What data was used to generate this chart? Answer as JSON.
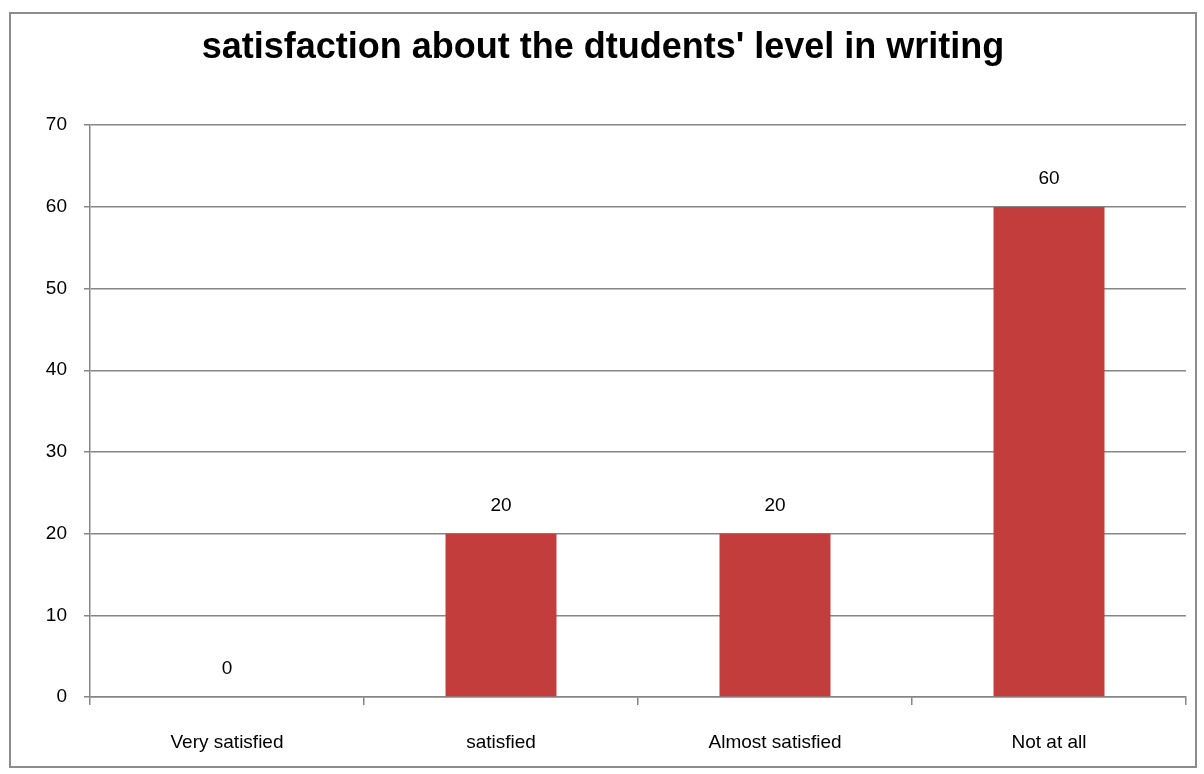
{
  "chart_data": {
    "type": "bar",
    "title": "satisfaction about the dtudents' level in writing",
    "categories": [
      "Very satisfied",
      "satisfied",
      "Almost satisfied",
      "Not at all"
    ],
    "values": [
      0,
      20,
      20,
      60
    ],
    "color": "#c23d3b",
    "ylim": [
      0,
      70
    ],
    "yticks": [
      0,
      10,
      20,
      30,
      40,
      50,
      60,
      70
    ],
    "grid": "y",
    "data_labels": true
  }
}
